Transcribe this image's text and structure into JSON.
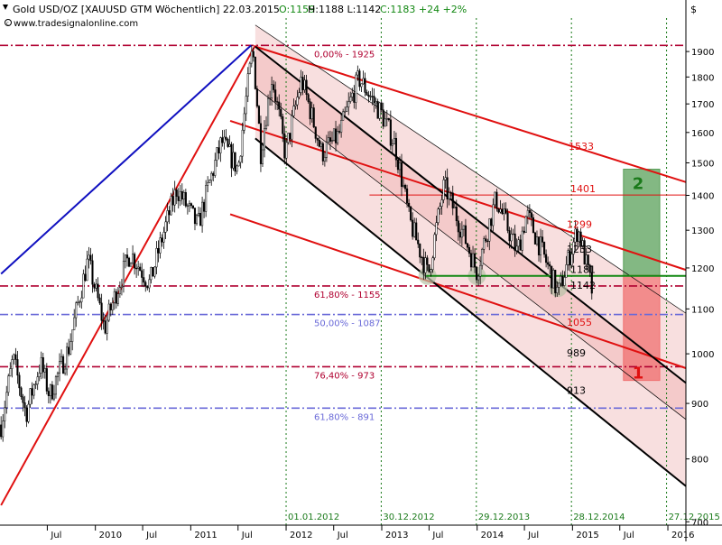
{
  "header": {
    "title": "Gold USD/OZ [XAUUSD GTM  Wöchentlich] 22.03.2015",
    "ohlc_open": "O:1159",
    "ohlc_rest": "H:1188 L:1142",
    "ohlc_close": "C:1183 +24 +2%",
    "website": "www.tradesignalonline.com"
  },
  "colors": {
    "background": "#ffffff",
    "frame": "#000000",
    "candle": "#000000",
    "fib_red": "#b00030",
    "fib_blue": "#6a6ad8",
    "trend_red": "#e01010",
    "trend_blue": "#1010c0",
    "channel_black": "#000000",
    "channel_fill": "#f0b8b8",
    "support_green": "#128812",
    "target_green": "#5aa05a",
    "target_red": "#f07070",
    "green_text": "#1a7a1a",
    "red_text": "#e01010",
    "date_text": "#1a7a1a"
  },
  "chart_data": {
    "type": "candlestick",
    "title": "Gold USD/OZ [XAUUSD GTM  Wöchentlich] 22.03.2015",
    "y_axis": {
      "unit": "$",
      "scale": "log",
      "ticks": [
        700,
        800,
        900,
        1000,
        1100,
        1200,
        1300,
        1400,
        1500,
        1600,
        1700,
        1800,
        1900
      ],
      "ylim": [
        695,
        2040
      ]
    },
    "x_axis": {
      "range": [
        "2009-01-01",
        "2016-03-10"
      ],
      "ticks": [
        {
          "date": "2009-07-01",
          "label": "Jul"
        },
        {
          "date": "2010-01-01",
          "label": "2010"
        },
        {
          "date": "2010-07-01",
          "label": "Jul"
        },
        {
          "date": "2011-01-01",
          "label": "2011"
        },
        {
          "date": "2011-07-01",
          "label": "Jul"
        },
        {
          "date": "2012-01-01",
          "label": "2012"
        },
        {
          "date": "2012-07-01",
          "label": "Jul"
        },
        {
          "date": "2013-01-01",
          "label": "2013"
        },
        {
          "date": "2013-07-01",
          "label": "Jul"
        },
        {
          "date": "2014-01-01",
          "label": "2014"
        },
        {
          "date": "2014-07-01",
          "label": "Jul"
        },
        {
          "date": "2015-01-01",
          "label": "2015"
        },
        {
          "date": "2015-07-01",
          "label": "Jul"
        },
        {
          "date": "2016-01-01",
          "label": "2016"
        }
      ]
    },
    "price_path": [
      [
        "2009-01-05",
        860
      ],
      [
        "2009-02-20",
        990
      ],
      [
        "2009-04-10",
        880
      ],
      [
        "2009-06-05",
        980
      ],
      [
        "2009-07-10",
        915
      ],
      [
        "2009-09-20",
        1010
      ],
      [
        "2009-12-03",
        1220
      ],
      [
        "2010-02-05",
        1055
      ],
      [
        "2010-05-14",
        1240
      ],
      [
        "2010-07-28",
        1160
      ],
      [
        "2010-11-09",
        1420
      ],
      [
        "2011-01-28",
        1310
      ],
      [
        "2011-04-29",
        1570
      ],
      [
        "2011-07-01",
        1480
      ],
      [
        "2011-08-26",
        1910
      ],
      [
        "2011-09-26",
        1535
      ],
      [
        "2011-11-08",
        1800
      ],
      [
        "2011-12-29",
        1525
      ],
      [
        "2012-02-29",
        1790
      ],
      [
        "2012-05-16",
        1530
      ],
      [
        "2012-07-20",
        1590
      ],
      [
        "2012-10-05",
        1795
      ],
      [
        "2012-12-31",
        1665
      ],
      [
        "2013-02-20",
        1560
      ],
      [
        "2013-04-16",
        1330
      ],
      [
        "2013-06-28",
        1180
      ],
      [
        "2013-08-28",
        1430
      ],
      [
        "2013-12-31",
        1190
      ],
      [
        "2014-03-14",
        1390
      ],
      [
        "2014-06-03",
        1240
      ],
      [
        "2014-07-10",
        1345
      ],
      [
        "2014-11-07",
        1135
      ],
      [
        "2015-01-22",
        1305
      ],
      [
        "2015-03-17",
        1142
      ],
      [
        "2015-03-22",
        1183
      ]
    ],
    "horizontal_levels": [
      {
        "label": "0,00% - 1925",
        "value": 1925,
        "color": "#b00030",
        "style": "dashdot"
      },
      {
        "label": "61,80% - 1155",
        "value": 1155,
        "color": "#b00030",
        "style": "dashdot"
      },
      {
        "label": "50,00% - 1087",
        "value": 1087,
        "color": "#6a6ad8",
        "style": "dashdot"
      },
      {
        "label": "76,40% - 973",
        "value": 973,
        "color": "#b00030",
        "style": "dashdot"
      },
      {
        "label": "61,80% - 891",
        "value": 891,
        "color": "#6a6ad8",
        "style": "dashdot"
      }
    ],
    "resistance_line": {
      "label": "1401",
      "value": 1401,
      "from": "2012-11-15",
      "to": "2016-03-10"
    },
    "support_line": {
      "value": 1180,
      "from": "2013-06-20",
      "to": "2016-03-10"
    },
    "support_touches": [
      {
        "date": "2013-06-25",
        "value": 1180
      },
      {
        "date": "2013-12-31",
        "value": 1180
      },
      {
        "date": "2014-11-07",
        "value": 1150
      }
    ],
    "trend_lines": [
      {
        "color": "#1010c0",
        "from": [
          "2009-01-05",
          1185
        ],
        "to": [
          "2011-08-20",
          1925
        ]
      },
      {
        "color": "#e01010",
        "from": [
          "2009-01-05",
          725
        ],
        "to": [
          "2011-09-05",
          1925
        ]
      },
      {
        "color": "#e01010",
        "from": [
          "2011-09-05",
          1920
        ],
        "to": [
          "2016-03-10",
          1440
        ]
      },
      {
        "color": "#e01010",
        "from": [
          "2011-06-01",
          1640
        ],
        "to": [
          "2016-03-10",
          1195
        ]
      },
      {
        "color": "#e01010",
        "from": [
          "2011-06-01",
          1345
        ],
        "to": [
          "2016-03-10",
          970
        ]
      }
    ],
    "channel": {
      "upper": {
        "from": [
          "2011-09-05",
          1920
        ],
        "to": [
          "2016-03-10",
          940
        ]
      },
      "lower": {
        "from": [
          "2011-09-05",
          1580
        ],
        "to": [
          "2016-03-10",
          755
        ]
      },
      "inner": [
        {
          "from": [
            "2011-09-05",
            2010
          ],
          "to": [
            "2016-03-10",
            1090
          ]
        },
        {
          "from": [
            "2011-09-05",
            1760
          ],
          "to": [
            "2016-03-10",
            870
          ]
        }
      ]
    },
    "targets": [
      {
        "label": "1533",
        "value": 1533
      },
      {
        "label": "1401",
        "value": 1401
      },
      {
        "label": "1299",
        "value": 1299
      },
      {
        "label": "1233",
        "value": 1233
      },
      {
        "label": "1181",
        "value": 1181
      },
      {
        "label": "1142",
        "value": 1142
      },
      {
        "label": "1055",
        "value": 1055
      },
      {
        "label": "989",
        "value": 989
      },
      {
        "label": "913",
        "value": 913
      }
    ],
    "scenario_boxes": [
      {
        "label": "2",
        "from": "2015-07-15",
        "to": "2015-12-01",
        "low": 1181,
        "high": 1480,
        "color": "#5aa05a"
      },
      {
        "label": "1",
        "from": "2015-07-15",
        "to": "2015-12-01",
        "low": 945,
        "high": 1181,
        "color": "#f07070"
      }
    ],
    "date_markers": [
      {
        "label": "01.01.2012",
        "date": "2012-01-01"
      },
      {
        "label": "30.12.2012",
        "date": "2012-12-30"
      },
      {
        "label": "29.12.2013",
        "date": "2013-12-29"
      },
      {
        "label": "28.12.2014",
        "date": "2014-12-28"
      },
      {
        "label": "27.12.2015",
        "date": "2015-12-27"
      }
    ]
  }
}
